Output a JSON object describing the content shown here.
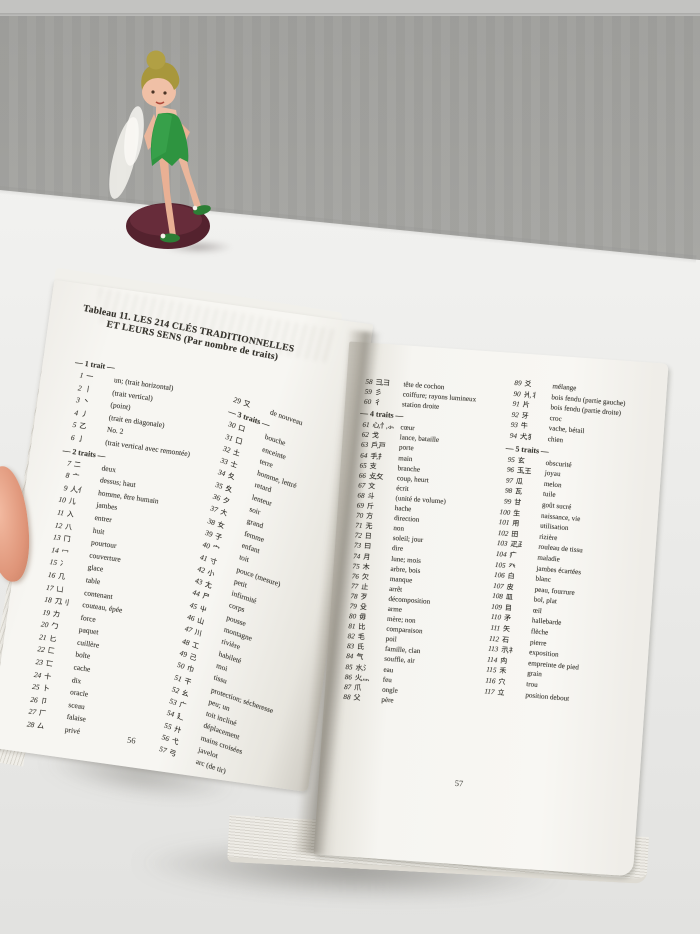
{
  "scene": {
    "description_colors": {
      "wall": "#cdcdcb",
      "table": "#efefed",
      "page": "#f7f6f2",
      "ink": "#3b3a34",
      "dress_green": "#2e9440",
      "hair_olive": "#ab9a3e",
      "base_maroon": "#5a2430",
      "skin": "#eab49b"
    }
  },
  "book": {
    "title_line1": "Tableau 11.  LES 214 CLÉS TRADITIONNELLES",
    "title_line2": "ET LEURS SENS (Par nombre de traits)",
    "left_page_number": "56",
    "right_page_number": "57",
    "left_col1": [
      {
        "label": "— 1 trait —"
      },
      {
        "n": "1",
        "c": "一",
        "m": "un; (trait horizontal)"
      },
      {
        "n": "2",
        "c": "丨",
        "m": "(trait vertical)"
      },
      {
        "n": "3",
        "c": "丶",
        "m": "(point)"
      },
      {
        "n": "4",
        "c": "丿",
        "m": "(trait en diagonale)"
      },
      {
        "n": "5",
        "c": "乙",
        "m": "No. 2"
      },
      {
        "n": "6",
        "c": "亅",
        "m": "(trait vertical avec remontée)"
      },
      {
        "label": "— 2 traits —"
      },
      {
        "n": "7",
        "c": "二",
        "m": "deux"
      },
      {
        "n": "8",
        "c": "亠",
        "m": "dessus; haut"
      },
      {
        "n": "9",
        "c": "人, 亻",
        "m": "homme, être humain"
      },
      {
        "n": "10",
        "c": "儿",
        "m": "jambes"
      },
      {
        "n": "11",
        "c": "入",
        "m": "entrer"
      },
      {
        "n": "12",
        "c": "八",
        "m": "huit"
      },
      {
        "n": "13",
        "c": "冂",
        "m": "pourtour"
      },
      {
        "n": "14",
        "c": "冖",
        "m": "couverture"
      },
      {
        "n": "15",
        "c": "冫",
        "m": "glace"
      },
      {
        "n": "16",
        "c": "几",
        "m": "table"
      },
      {
        "n": "17",
        "c": "凵",
        "m": "contenant"
      },
      {
        "n": "18",
        "c": "刀, 刂",
        "m": "couteau, épée"
      },
      {
        "n": "19",
        "c": "力",
        "m": "force"
      },
      {
        "n": "20",
        "c": "勹",
        "m": "paquet"
      },
      {
        "n": "21",
        "c": "匕",
        "m": "cuillère"
      },
      {
        "n": "22",
        "c": "匚",
        "m": "boîte"
      },
      {
        "n": "23",
        "c": "匸",
        "m": "cache"
      },
      {
        "n": "24",
        "c": "十",
        "m": "dix"
      },
      {
        "n": "25",
        "c": "卜",
        "m": "oracle"
      },
      {
        "n": "26",
        "c": "卩",
        "m": "sceau"
      },
      {
        "n": "27",
        "c": "厂",
        "m": "falaise"
      },
      {
        "n": "28",
        "c": "厶",
        "m": "privé"
      }
    ],
    "left_col2": [
      {
        "n": "29",
        "c": "又",
        "m": "de nouveau"
      },
      {
        "label": "— 3 traits —"
      },
      {
        "n": "30",
        "c": "口",
        "m": "bouche"
      },
      {
        "n": "31",
        "c": "囗",
        "m": "enceinte"
      },
      {
        "n": "32",
        "c": "土",
        "m": "terre"
      },
      {
        "n": "33",
        "c": "士",
        "m": "homme, lettré"
      },
      {
        "n": "34",
        "c": "夂",
        "m": "retard"
      },
      {
        "n": "35",
        "c": "夊",
        "m": "lenteur"
      },
      {
        "n": "36",
        "c": "夕",
        "m": "soir"
      },
      {
        "n": "37",
        "c": "大",
        "m": "grand"
      },
      {
        "n": "38",
        "c": "女",
        "m": "femme"
      },
      {
        "n": "39",
        "c": "子",
        "m": "enfant"
      },
      {
        "n": "40",
        "c": "宀",
        "m": "toit"
      },
      {
        "n": "41",
        "c": "寸",
        "m": "pouce (mesure)"
      },
      {
        "n": "42",
        "c": "小",
        "m": "petit"
      },
      {
        "n": "43",
        "c": "尢",
        "m": "infirmité"
      },
      {
        "n": "44",
        "c": "尸",
        "m": "corps"
      },
      {
        "n": "45",
        "c": "屮",
        "m": "pousse"
      },
      {
        "n": "46",
        "c": "山",
        "m": "montagne"
      },
      {
        "n": "47",
        "c": "川",
        "m": "rivière"
      },
      {
        "n": "48",
        "c": "工",
        "m": "habileté"
      },
      {
        "n": "49",
        "c": "己",
        "m": "moi"
      },
      {
        "n": "50",
        "c": "巾",
        "m": "tissu"
      },
      {
        "n": "51",
        "c": "干",
        "m": "protection; sécheresse"
      },
      {
        "n": "52",
        "c": "幺",
        "m": "peu; un"
      },
      {
        "n": "53",
        "c": "广",
        "m": "toit incliné"
      },
      {
        "n": "54",
        "c": "廴",
        "m": "déplacement"
      },
      {
        "n": "55",
        "c": "廾",
        "m": "mains croisées"
      },
      {
        "n": "56",
        "c": "弋",
        "m": "javelot"
      },
      {
        "n": "57",
        "c": "弓",
        "m": "arc (de tir)"
      }
    ],
    "right_col1": [
      {
        "n": "58",
        "c": "彐, ⺕",
        "m": "tête de cochon"
      },
      {
        "n": "59",
        "c": "彡",
        "m": "coiffure; rayons lumineux"
      },
      {
        "n": "60",
        "c": "彳",
        "m": "station droite"
      },
      {
        "label": "— 4 traits —"
      },
      {
        "n": "61",
        "c": "心, 忄, ⺗",
        "m": "cœur"
      },
      {
        "n": "62",
        "c": "戈",
        "m": "lance, bataille"
      },
      {
        "n": "63",
        "c": "戶, 戸",
        "m": "porte"
      },
      {
        "n": "64",
        "c": "手, 扌",
        "m": "main"
      },
      {
        "n": "65",
        "c": "支",
        "m": "branche"
      },
      {
        "n": "66",
        "c": "攴, 攵",
        "m": "coup, heurt"
      },
      {
        "n": "67",
        "c": "文",
        "m": "écrit"
      },
      {
        "n": "68",
        "c": "斗",
        "m": "(unité de volume)"
      },
      {
        "n": "69",
        "c": "斤",
        "m": "hache"
      },
      {
        "n": "70",
        "c": "方",
        "m": "direction"
      },
      {
        "n": "71",
        "c": "无",
        "m": "non"
      },
      {
        "n": "72",
        "c": "日",
        "m": "soleil; jour"
      },
      {
        "n": "73",
        "c": "曰",
        "m": "dire"
      },
      {
        "n": "74",
        "c": "月",
        "m": "lune; mois"
      },
      {
        "n": "75",
        "c": "木",
        "m": "arbre, bois"
      },
      {
        "n": "76",
        "c": "欠",
        "m": "manque"
      },
      {
        "n": "77",
        "c": "止",
        "m": "arrêt"
      },
      {
        "n": "78",
        "c": "歹",
        "m": "décomposition"
      },
      {
        "n": "79",
        "c": "殳",
        "m": "arme"
      },
      {
        "n": "80",
        "c": "毋",
        "m": "mère; non"
      },
      {
        "n": "81",
        "c": "比",
        "m": "comparaison"
      },
      {
        "n": "82",
        "c": "毛",
        "m": "poil"
      },
      {
        "n": "83",
        "c": "氏",
        "m": "famille, clan"
      },
      {
        "n": "84",
        "c": "气",
        "m": "souffle, air"
      },
      {
        "n": "85",
        "c": "水, 氵",
        "m": "eau"
      },
      {
        "n": "86",
        "c": "火, 灬",
        "m": "feu"
      },
      {
        "n": "87",
        "c": "爪",
        "m": "ongle"
      },
      {
        "n": "88",
        "c": "父",
        "m": "père"
      }
    ],
    "right_col2": [
      {
        "n": "89",
        "c": "爻",
        "m": "mélange"
      },
      {
        "n": "90",
        "c": "爿, 丬",
        "m": "bois fendu (partie gauche)"
      },
      {
        "n": "91",
        "c": "片",
        "m": "bois fendu (partie droite)"
      },
      {
        "n": "92",
        "c": "牙",
        "m": "croc"
      },
      {
        "n": "93",
        "c": "牛",
        "m": "vache, bétail"
      },
      {
        "n": "94",
        "c": "犬, 犭",
        "m": "chien"
      },
      {
        "label": "— 5 traits —"
      },
      {
        "n": "95",
        "c": "玄",
        "m": "obscurité"
      },
      {
        "n": "96",
        "c": "玉, 王",
        "m": "joyau"
      },
      {
        "n": "97",
        "c": "瓜",
        "m": "melon"
      },
      {
        "n": "98",
        "c": "瓦",
        "m": "tuile"
      },
      {
        "n": "99",
        "c": "甘",
        "m": "goût sucré"
      },
      {
        "n": "100",
        "c": "生",
        "m": "naissance, vie"
      },
      {
        "n": "101",
        "c": "用",
        "m": "utilisation"
      },
      {
        "n": "102",
        "c": "田",
        "m": "rizière"
      },
      {
        "n": "103",
        "c": "疋, ⺪",
        "m": "rouleau de tissu"
      },
      {
        "n": "104",
        "c": "疒",
        "m": "maladie"
      },
      {
        "n": "105",
        "c": "癶",
        "m": "jambes écartées"
      },
      {
        "n": "106",
        "c": "白",
        "m": "blanc"
      },
      {
        "n": "107",
        "c": "皮",
        "m": "peau, fourrure"
      },
      {
        "n": "108",
        "c": "皿",
        "m": "bol, plat"
      },
      {
        "n": "109",
        "c": "目",
        "m": "œil"
      },
      {
        "n": "110",
        "c": "矛",
        "m": "hallebarde"
      },
      {
        "n": "111",
        "c": "矢",
        "m": "flèche"
      },
      {
        "n": "112",
        "c": "石",
        "m": "pierre"
      },
      {
        "n": "113",
        "c": "示, 礻",
        "m": "exposition"
      },
      {
        "n": "114",
        "c": "禸",
        "m": "empreinte de pied"
      },
      {
        "n": "115",
        "c": "禾",
        "m": "grain"
      },
      {
        "n": "116",
        "c": "穴",
        "m": "trou"
      },
      {
        "n": "117",
        "c": "立",
        "m": "position debout"
      }
    ]
  }
}
